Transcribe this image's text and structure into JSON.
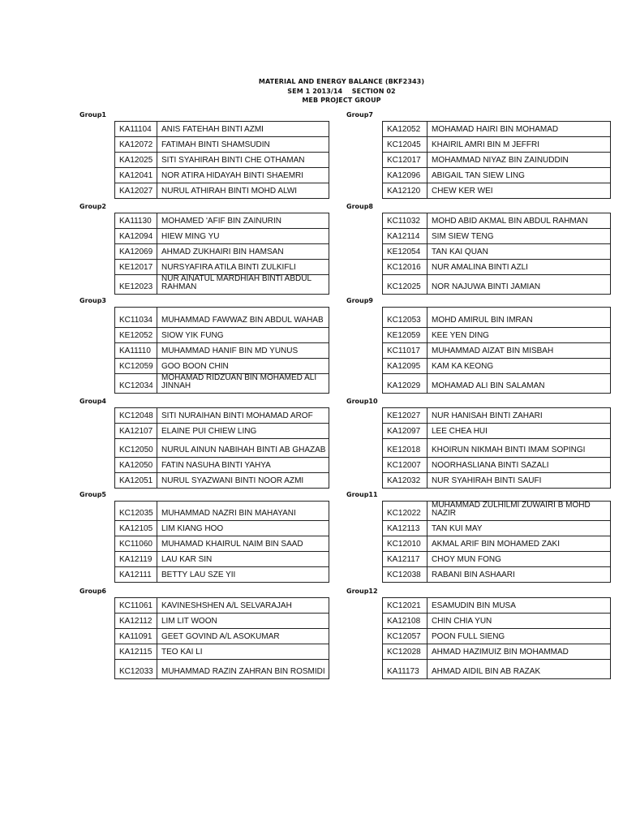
{
  "header": {
    "line1": "MATERIAL AND ENERGY BALANCE (BKF2343)",
    "line2": "SEM 1 2013/14    SECTION 02",
    "line3": "MEB PROJECT GROUP"
  },
  "groups": [
    {
      "label": "Group1",
      "members": [
        [
          "KA11104",
          "ANIS FATEHAH BINTI AZMI"
        ],
        [
          "KA12072",
          "FATIMAH BINTI SHAMSUDIN"
        ],
        [
          "KA12025",
          "SITI SYAHIRAH BINTI CHE OTHAMAN"
        ],
        [
          "KA12041",
          "NOR ATIRA HIDAYAH BINTI SHAEMRI"
        ],
        [
          "KA12027",
          "NURUL ATHIRAH BINTI MOHD ALWI"
        ]
      ]
    },
    {
      "label": "Group2",
      "members": [
        [
          "KA11130",
          "MOHAMED 'AFIF BIN ZAINURIN"
        ],
        [
          "KA12094",
          "HIEW MING YU"
        ],
        [
          "KA12069",
          "AHMAD ZUKHAIRI BIN HAMSAN"
        ],
        [
          "KE12017",
          "NURSYAFIRA ATILA BINTI ZULKIFLI"
        ],
        [
          "KE12023",
          "NUR AINATUL MARDHIAH BINTI ABDUL RAHMAN"
        ]
      ]
    },
    {
      "label": "Group3",
      "members": [
        [
          "KC11034",
          "MUHAMMAD FAWWAZ BIN ABDUL WAHAB"
        ],
        [
          "KE12052",
          "SIOW YIK FUNG"
        ],
        [
          "KA11110",
          "MUHAMMAD HANIF BIN MD YUNUS"
        ],
        [
          "KC12059",
          "GOO BOON CHIN"
        ],
        [
          "KC12034",
          "MOHAMAD RIDZUAN BIN MOHAMED ALI JINNAH"
        ]
      ]
    },
    {
      "label": "Group4",
      "members": [
        [
          "KC12048",
          "SITI NURAIHAN BINTI MOHAMAD AROF"
        ],
        [
          "KA12107",
          "ELAINE PUI CHIEW LING"
        ],
        [
          "KC12050",
          "NURUL AINUN NABIHAH BINTI AB GHAZAB"
        ],
        [
          "KA12050",
          "FATIN NASUHA BINTI YAHYA"
        ],
        [
          "KA12051",
          "NURUL SYAZWANI BINTI NOOR AZMI"
        ]
      ]
    },
    {
      "label": "Group5",
      "members": [
        [
          "KC12035",
          "MUHAMMAD NAZRI BIN MAHAYANI"
        ],
        [
          "KA12105",
          "LIM KIANG HOO"
        ],
        [
          "KC11060",
          "MUHAMAD KHAIRUL NAIM BIN SAAD"
        ],
        [
          "KA12119",
          "LAU KAR SIN"
        ],
        [
          "KA12111",
          "BETTY LAU SZE YII"
        ]
      ]
    },
    {
      "label": "Group6",
      "members": [
        [
          "KC11061",
          "KAVINESHSHEN A/L SELVARAJAH"
        ],
        [
          "KA12112",
          "LIM LIT WOON"
        ],
        [
          "KA11091",
          "GEET GOVIND A/L ASOKUMAR"
        ],
        [
          "KA12115",
          "TEO KAI LI"
        ],
        [
          "KC12033",
          "MUHAMMAD RAZIN ZAHRAN BIN ROSMIDI"
        ]
      ]
    },
    {
      "label": "Group7",
      "members": [
        [
          "KA12052",
          "MOHAMAD HAIRI BIN MOHAMAD"
        ],
        [
          "KC12045",
          "KHAIRIL AMRI BIN M JEFFRI"
        ],
        [
          "KC12017",
          "MOHAMMAD NIYAZ BIN ZAINUDDIN"
        ],
        [
          "KA12096",
          "ABIGAIL TAN SIEW LING"
        ],
        [
          "KA12120",
          "CHEW KER WEI"
        ]
      ]
    },
    {
      "label": "Group8",
      "members": [
        [
          "KC11032",
          "MOHD ABID AKMAL BIN ABDUL RAHMAN"
        ],
        [
          "KA12114",
          "SIM SIEW TENG"
        ],
        [
          "KE12054",
          "TAN KAI QUAN"
        ],
        [
          "KC12016",
          "NUR AMALINA BINTI AZLI"
        ],
        [
          "KC12025",
          "NOR NAJUWA BINTI JAMIAN"
        ]
      ]
    },
    {
      "label": "Group9",
      "members": [
        [
          "KC12053",
          "MOHD AMIRUL BIN IMRAN"
        ],
        [
          "KE12059",
          "KEE YEN DING"
        ],
        [
          "KC11017",
          "MUHAMMAD AIZAT BIN MISBAH"
        ],
        [
          "KA12095",
          "KAM KA KEONG"
        ],
        [
          "KA12029",
          "MOHAMAD ALI BIN SALAMAN"
        ]
      ]
    },
    {
      "label": "Group10",
      "members": [
        [
          "KE12027",
          "NUR HANISAH BINTI ZAHARI"
        ],
        [
          "KA12097",
          "LEE CHEA HUI"
        ],
        [
          "KE12018",
          "KHOIRUN NIKMAH BINTI IMAM SOPINGI"
        ],
        [
          "KC12007",
          "NOORHASLIANA BINTI SAZALI"
        ],
        [
          "KA12032",
          "NUR SYAHIRAH BINTI SAUFI"
        ]
      ]
    },
    {
      "label": "Group11",
      "members": [
        [
          "KC12022",
          "MUHAMMAD ZULHILMI ZUWAIRI B MOHD NAZIR"
        ],
        [
          "KA12113",
          "TAN KUI MAY"
        ],
        [
          "KC12010",
          "AKMAL ARIF BIN MOHAMED ZAKI"
        ],
        [
          "KA12117",
          "CHOY MUN FONG"
        ],
        [
          "KC12038",
          "RABANI BIN ASHAARI"
        ]
      ]
    },
    {
      "label": "Group12",
      "members": [
        [
          "KC12021",
          "ESAMUDIN BIN MUSA"
        ],
        [
          "KA12108",
          "CHIN CHIA YUN"
        ],
        [
          "KC12057",
          "POON FULL SIENG"
        ],
        [
          "KC12028",
          "AHMAD HAZIMUIZ BIN MOHAMMAD"
        ],
        [
          "KA11173",
          "AHMAD AIDIL BIN AB RAZAK"
        ]
      ]
    }
  ]
}
